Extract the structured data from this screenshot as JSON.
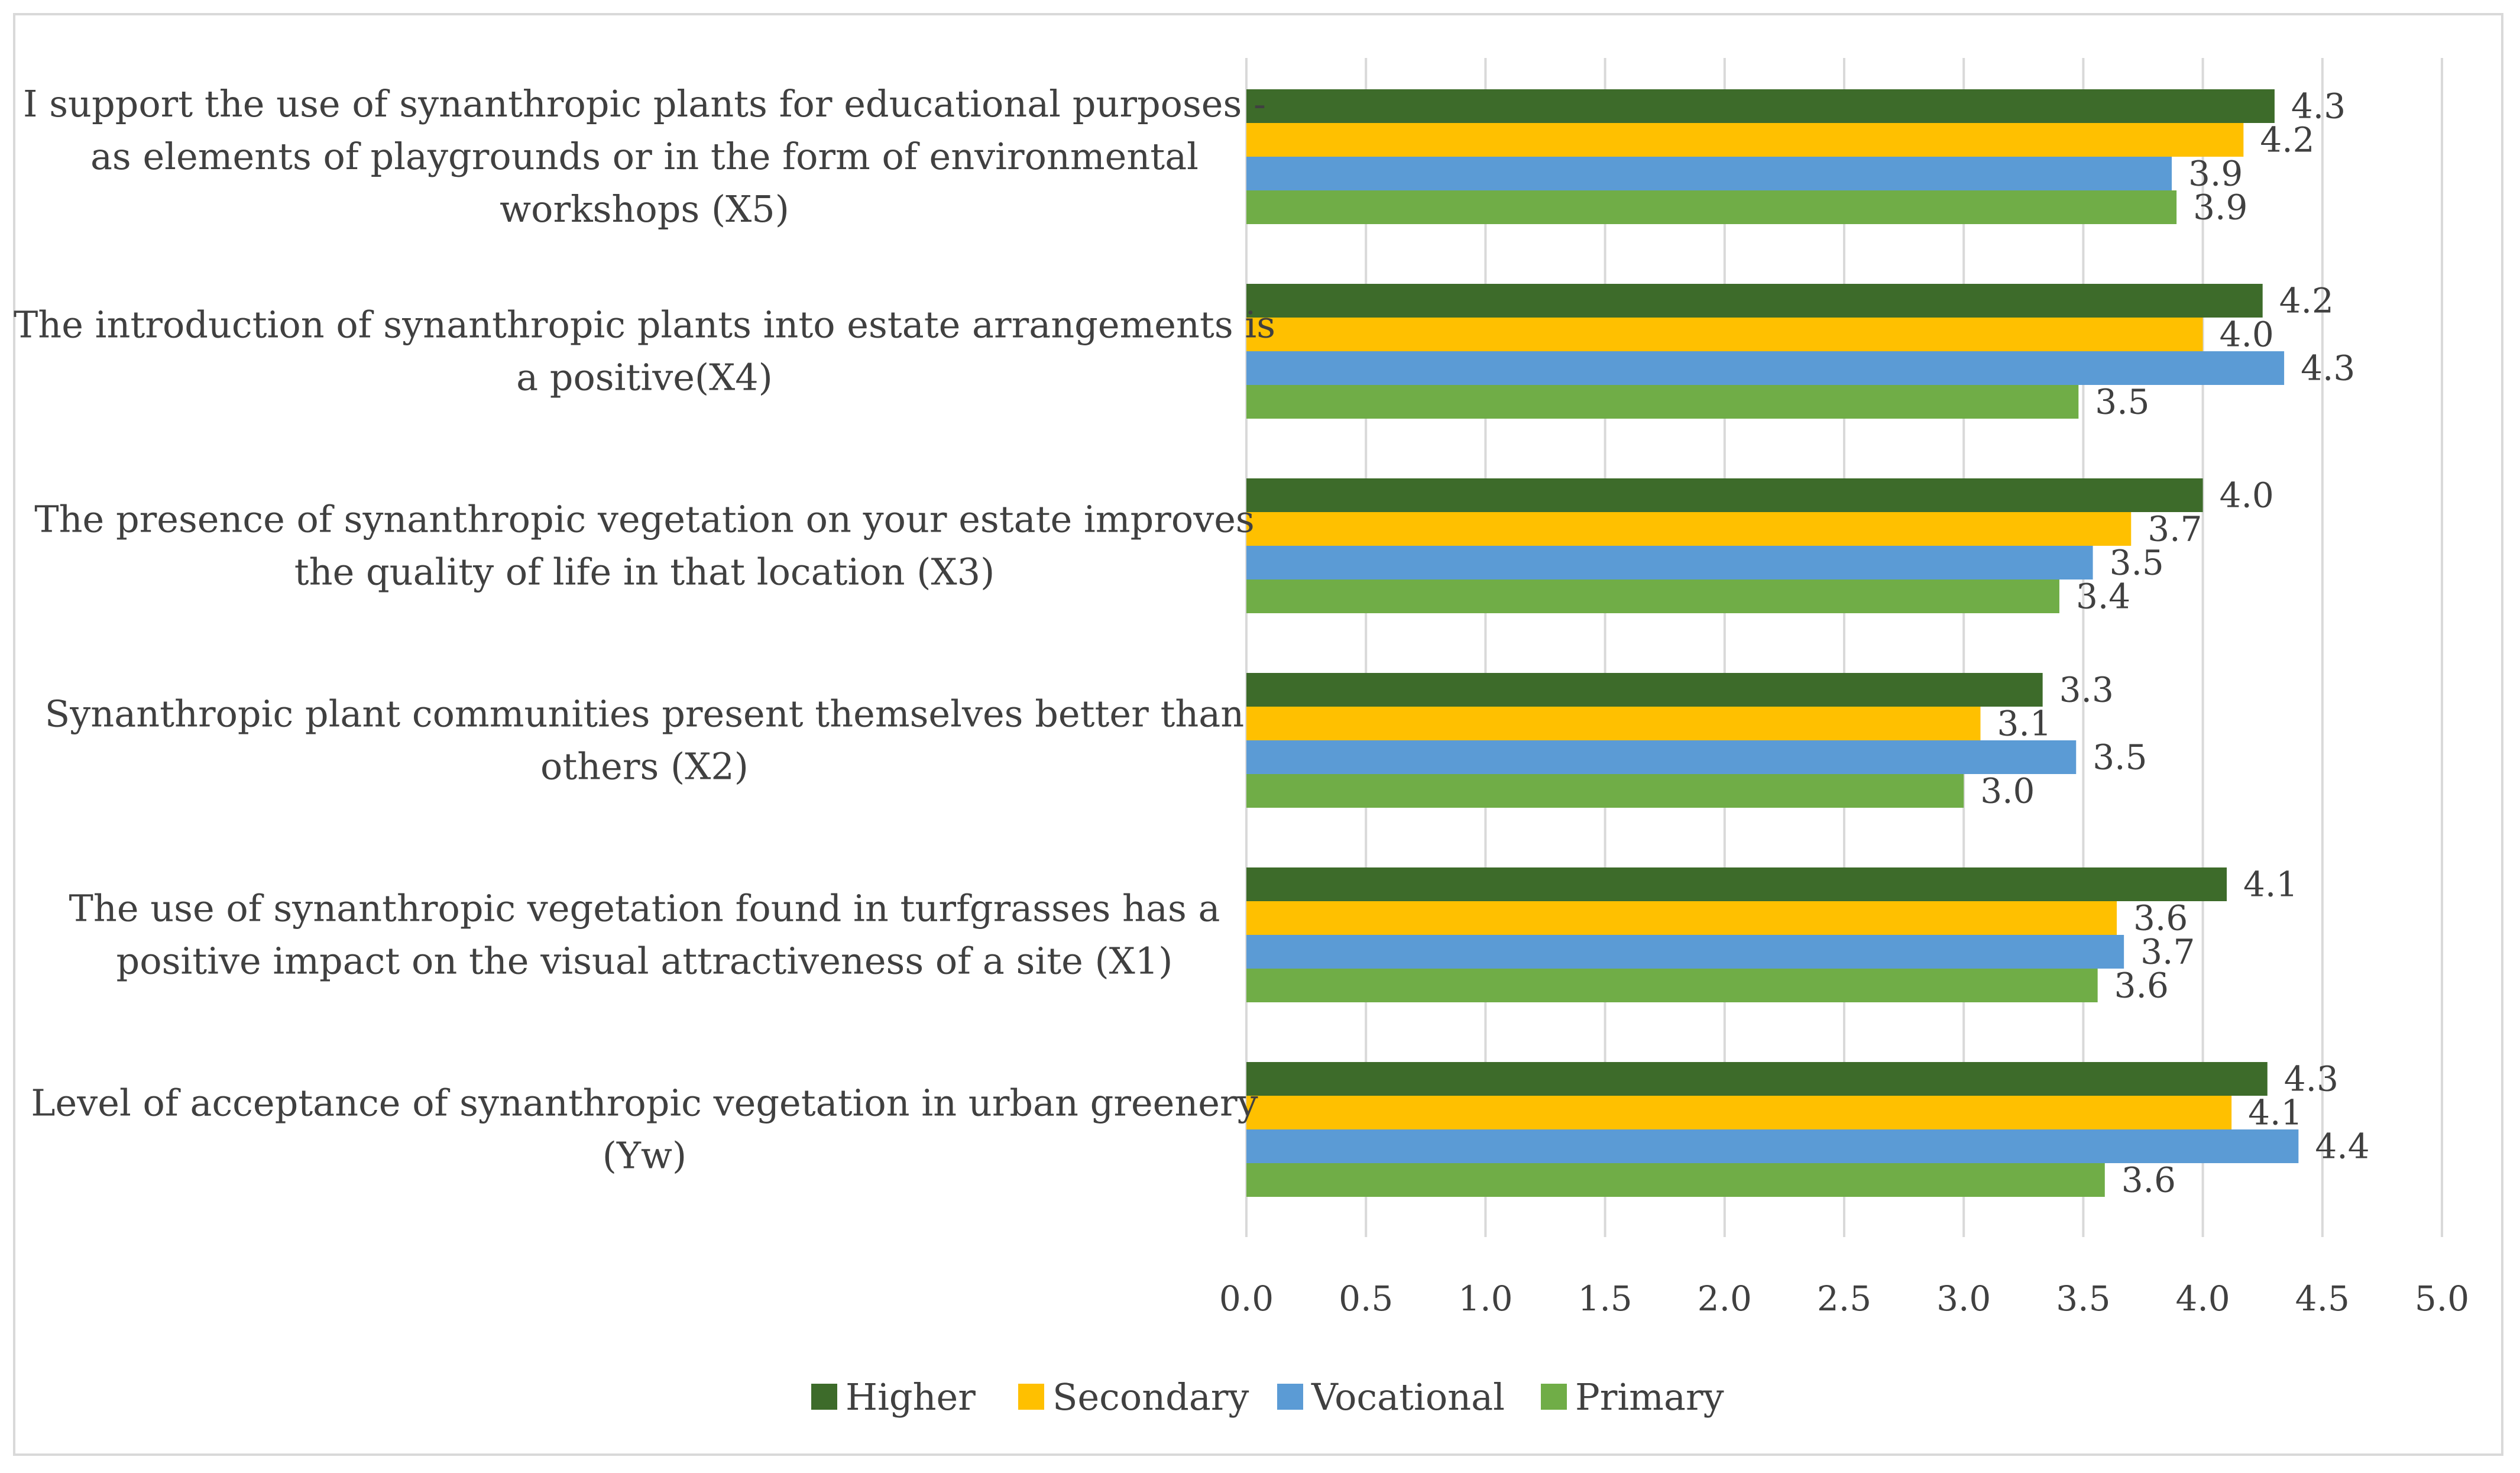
{
  "chart_data": {
    "type": "bar",
    "orientation": "horizontal",
    "title": "",
    "xlabel": "",
    "ylabel": "",
    "xlim": [
      0,
      5
    ],
    "x_ticks": [
      "0.0",
      "0.5",
      "1.0",
      "1.5",
      "2.0",
      "2.5",
      "3.0",
      "3.5",
      "4.0",
      "4.5",
      "5.0"
    ],
    "grid": true,
    "legend_position": "bottom",
    "categories": [
      {
        "lines": [
          "I support the use of synanthropic plants for educational purposes -",
          "as elements of playgrounds or in the form of environmental",
          "workshops (X5)"
        ]
      },
      {
        "lines": [
          "The introduction of synanthropic plants into estate arrangements is",
          "a positive(X4)"
        ]
      },
      {
        "lines": [
          "The presence of synanthropic vegetation on your estate improves",
          "the quality of life in that location (X3)"
        ]
      },
      {
        "lines": [
          "Synanthropic plant communities present themselves better than",
          "others (X2)"
        ]
      },
      {
        "lines": [
          "The use of synanthropic vegetation found in turfgrasses has a",
          "positive impact on the visual attractiveness of a site (X1)"
        ]
      },
      {
        "lines": [
          "Level of acceptance of synanthropic vegetation in urban greenery",
          "(Yw)"
        ]
      }
    ],
    "series": [
      {
        "name": "Higher",
        "color": "#3d6b2a",
        "values": [
          4.3,
          4.25,
          4.0,
          3.33,
          4.1,
          4.27
        ],
        "labels": [
          "4.3",
          "4.2",
          "4.0",
          "3.3",
          "4.1",
          "4.3"
        ]
      },
      {
        "name": "Secondary",
        "color": "#ffc000",
        "values": [
          4.17,
          4.0,
          3.7,
          3.07,
          3.64,
          4.12
        ],
        "labels": [
          "4.2",
          "4.0",
          "3.7",
          "3.1",
          "3.6",
          "4.1"
        ]
      },
      {
        "name": "Vocational",
        "color": "#5b9bd5",
        "values": [
          3.87,
          4.34,
          3.54,
          3.47,
          3.67,
          4.4
        ],
        "labels": [
          "3.9",
          "4.3",
          "3.5",
          "3.5",
          "3.7",
          "4.4"
        ]
      },
      {
        "name": "Primary",
        "color": "#70ad47",
        "values": [
          3.89,
          3.48,
          3.4,
          3.0,
          3.56,
          3.59
        ],
        "labels": [
          "3.9",
          "3.5",
          "3.4",
          "3.0",
          "3.6",
          "3.6"
        ]
      }
    ]
  }
}
